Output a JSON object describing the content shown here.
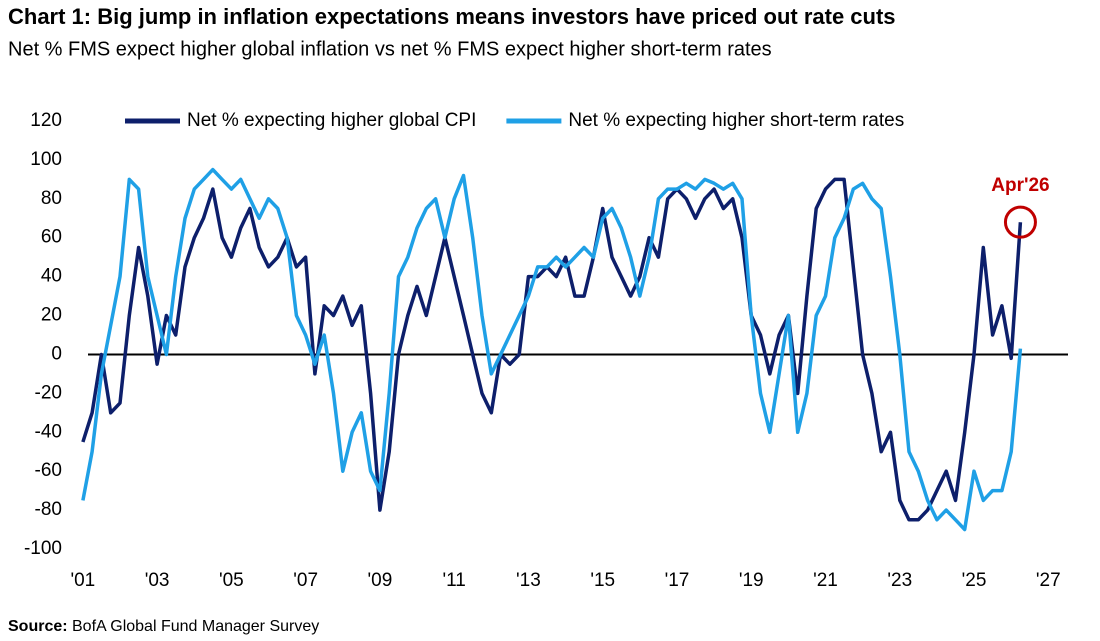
{
  "chart_data": {
    "type": "line",
    "title": "Chart 1: Big jump in inflation expectations means investors have priced out rate cuts",
    "subtitle": "Net % FMS expect higher global inflation vs net % FMS expect higher short-term rates",
    "source_label": "Source:",
    "source": "BofA Global Fund Manager Survey",
    "annotation": "Apr'26",
    "annotation_color": "#c00000",
    "x": [
      2001,
      2001.25,
      2001.5,
      2001.75,
      2002,
      2002.25,
      2002.5,
      2002.75,
      2003,
      2003.25,
      2003.5,
      2003.75,
      2004,
      2004.25,
      2004.5,
      2004.75,
      2005,
      2005.25,
      2005.5,
      2005.75,
      2006,
      2006.25,
      2006.5,
      2006.75,
      2007,
      2007.25,
      2007.5,
      2007.75,
      2008,
      2008.25,
      2008.5,
      2008.75,
      2009,
      2009.25,
      2009.5,
      2009.75,
      2010,
      2010.25,
      2010.5,
      2010.75,
      2011,
      2011.25,
      2011.5,
      2011.75,
      2012,
      2012.25,
      2012.5,
      2012.75,
      2013,
      2013.25,
      2013.5,
      2013.75,
      2014,
      2014.25,
      2014.5,
      2014.75,
      2015,
      2015.25,
      2015.5,
      2015.75,
      2016,
      2016.25,
      2016.5,
      2016.75,
      2017,
      2017.25,
      2017.5,
      2017.75,
      2018,
      2018.25,
      2018.5,
      2018.75,
      2019,
      2019.25,
      2019.5,
      2019.75,
      2020,
      2020.25,
      2020.5,
      2020.75,
      2021,
      2021.25,
      2021.5,
      2021.75,
      2022,
      2022.25,
      2022.5,
      2022.75,
      2023,
      2023.25,
      2023.5,
      2023.75,
      2024,
      2024.25,
      2024.5,
      2024.75,
      2025,
      2025.25,
      2025.5,
      2025.75,
      2026,
      2026.25
    ],
    "series": [
      {
        "name": "Net % expecting higher global CPI",
        "color": "#0d1f6b",
        "values": [
          -45,
          -30,
          0,
          -30,
          -25,
          20,
          55,
          30,
          -5,
          20,
          10,
          45,
          60,
          70,
          85,
          60,
          50,
          65,
          75,
          55,
          45,
          50,
          60,
          45,
          50,
          -10,
          25,
          20,
          30,
          15,
          25,
          -20,
          -80,
          -50,
          0,
          20,
          35,
          20,
          40,
          60,
          40,
          20,
          0,
          -20,
          -30,
          0,
          -5,
          0,
          40,
          40,
          45,
          40,
          50,
          30,
          30,
          50,
          75,
          50,
          40,
          30,
          40,
          60,
          50,
          80,
          85,
          80,
          70,
          80,
          85,
          75,
          80,
          60,
          20,
          10,
          -10,
          10,
          20,
          -20,
          30,
          75,
          85,
          90,
          90,
          45,
          0,
          -20,
          -50,
          -40,
          -75,
          -85,
          -85,
          -80,
          -70,
          -60,
          -75,
          -40,
          0,
          55,
          10,
          25,
          -2,
          68
        ]
      },
      {
        "name": "Net % expecting higher short-term rates",
        "color": "#1fa0e6",
        "values": [
          -75,
          -50,
          -10,
          15,
          40,
          90,
          85,
          40,
          20,
          0,
          40,
          70,
          85,
          90,
          95,
          90,
          85,
          90,
          80,
          70,
          80,
          75,
          60,
          20,
          10,
          -5,
          10,
          -20,
          -60,
          -40,
          -30,
          -60,
          -70,
          -20,
          40,
          50,
          65,
          75,
          80,
          60,
          80,
          92,
          60,
          20,
          -10,
          0,
          10,
          20,
          30,
          45,
          45,
          50,
          45,
          50,
          55,
          50,
          70,
          75,
          65,
          50,
          30,
          50,
          80,
          85,
          85,
          88,
          85,
          90,
          88,
          85,
          88,
          80,
          20,
          -20,
          -40,
          -10,
          20,
          -40,
          -20,
          20,
          30,
          60,
          70,
          85,
          88,
          80,
          75,
          40,
          0,
          -50,
          -60,
          -75,
          -85,
          -80,
          -85,
          -90,
          -60,
          -75,
          -70,
          -70,
          -50,
          3
        ]
      }
    ],
    "xlim": [
      2000.6,
      2027.8
    ],
    "xticks": [
      {
        "value": 2001,
        "label": "'01"
      },
      {
        "value": 2003,
        "label": "'03"
      },
      {
        "value": 2005,
        "label": "'05"
      },
      {
        "value": 2007,
        "label": "'07"
      },
      {
        "value": 2009,
        "label": "'09"
      },
      {
        "value": 2011,
        "label": "'11"
      },
      {
        "value": 2013,
        "label": "'13"
      },
      {
        "value": 2015,
        "label": "'15"
      },
      {
        "value": 2017,
        "label": "'17"
      },
      {
        "value": 2019,
        "label": "'19"
      },
      {
        "value": 2021,
        "label": "'21"
      },
      {
        "value": 2023,
        "label": "'23"
      },
      {
        "value": 2025,
        "label": "'25"
      },
      {
        "value": 2027,
        "label": "'27"
      }
    ],
    "ylim": [
      -100,
      120
    ],
    "yticks": [
      -100,
      -80,
      -60,
      -40,
      -20,
      0,
      20,
      40,
      60,
      80,
      100,
      120
    ],
    "zero_line": true
  }
}
